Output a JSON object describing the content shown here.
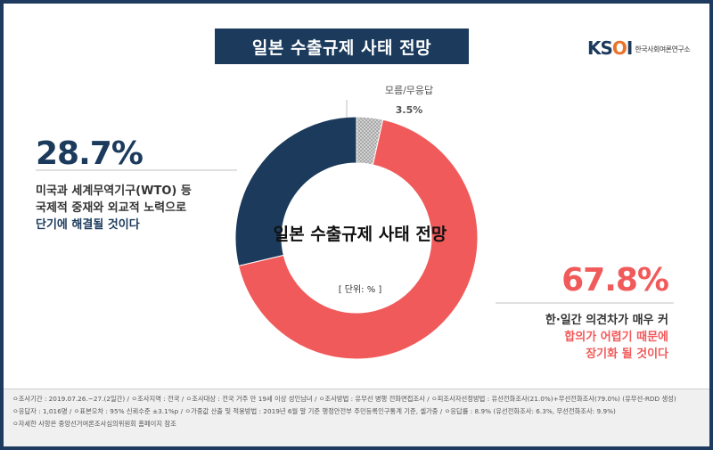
{
  "title": "일본 수출규제 사태 전망",
  "logo": {
    "mark": "KSOI",
    "text": "한국사회여론연구소"
  },
  "chart_data": {
    "type": "pie",
    "title": "일본 수출규제 사태 전망",
    "unit": "[ 단위: % ]",
    "slices": [
      {
        "label": "모름/무응답",
        "value": 3.5,
        "value_label": "3.5%",
        "color": "#c8c8c8"
      },
      {
        "label": "한·일간 의견차가 매우 커 합의가 어렵기 때문에 장기화 될 것이다",
        "value": 67.8,
        "value_label": "67.8%",
        "color": "#f15a5a"
      },
      {
        "label": "미국과 세계무역기구(WTO) 등 국제적 중재와 외교적 노력으로 단기에 해결될 것이다",
        "value": 28.7,
        "value_label": "28.7%",
        "color": "#1b3a5c"
      }
    ]
  },
  "left": {
    "pct": "28.7%",
    "line1": "미국과 세계무역기구(WTO) 등",
    "line2": "국제적 중재와 외교적 노력으로",
    "line3": "단기에 해결될 것이다"
  },
  "right": {
    "pct": "67.8%",
    "line1": "한·일간 의견차가 매우 커",
    "line2": "합의가 어렵기 때문에",
    "line3": "장기화 될 것이다"
  },
  "top": {
    "label": "모름/무응답",
    "pct": "3.5%"
  },
  "center": {
    "title": "일본 수출규제 사태 전망",
    "unit": "[ 단위: % ]"
  },
  "footer": {
    "line1": "ㅇ조사기간 : 2019.07.26.~27.(2일간) / ㅇ조사지역 : 전국 / ㅇ조사대상 : 전국 거주 만 19세 이상 성인남녀 / ㅇ조사방법 : 유무선 병행 전화면접조사 / ㅇ피조사자선정방법 : 유선전화조사(21.0%)+무선전화조사(79.0%) (유무선-RDD 생성)",
    "line2": "ㅇ응답자 : 1,016명 / ㅇ표본오차 : 95% 신뢰수준 ±3.1%p / ㅇ가중값 산출 및 적용방법 : 2019년 6월 말 기준 행정안전부 주민등록인구통계 기준, 셀가중 / ㅇ응답률 : 8.9% (유선전화조사: 6.3%, 무선전화조사: 9.9%)",
    "line3": "ㅇ자세한 사항은 중앙선거여론조사심의위원회 홈페이지 참조"
  }
}
